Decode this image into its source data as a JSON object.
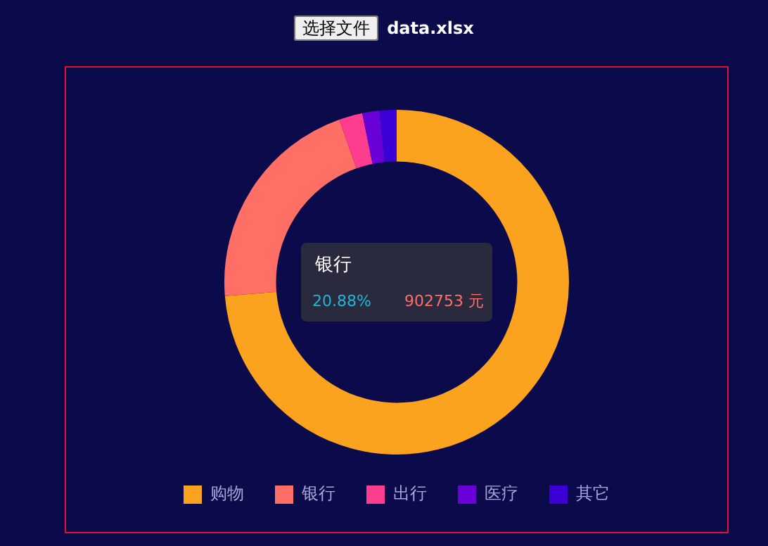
{
  "chart_data": {
    "type": "donut",
    "annotations": [
      "选择文件",
      "data.xlsx",
      "银行",
      "20.88%",
      "902753 元"
    ],
    "categories": [
      "购物",
      "银行",
      "出行",
      "医疗",
      "其它"
    ],
    "values": [
      73.72,
      20.88,
      2.2,
      1.6,
      1.6
    ],
    "colors": [
      "#fba31f",
      "#ff6f66",
      "#ff3d8f",
      "#6a00d8",
      "#3a00d6"
    ],
    "legend": "bottom"
  }
}
